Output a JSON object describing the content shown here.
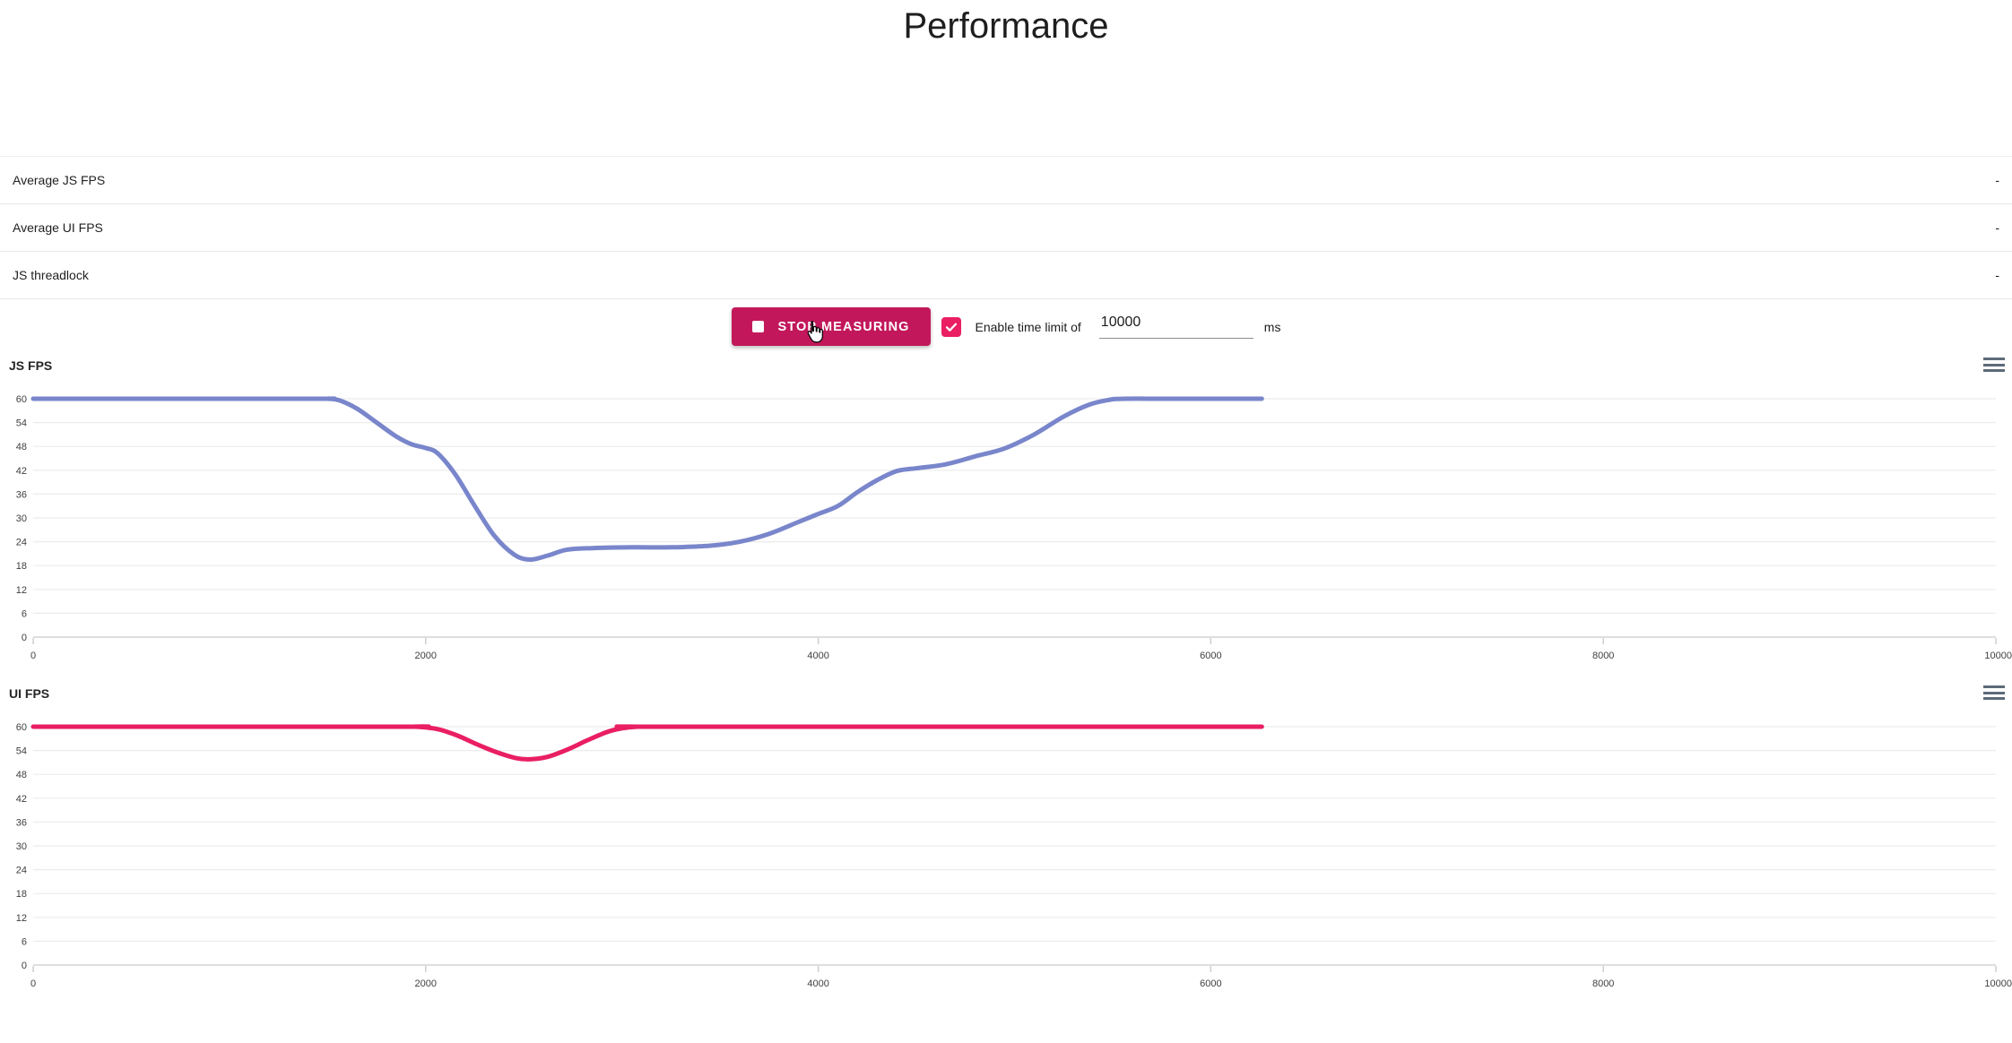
{
  "page": {
    "title": "Performance"
  },
  "stats": {
    "rows": [
      {
        "label": "Average JS FPS",
        "value": "-"
      },
      {
        "label": "Average UI FPS",
        "value": "-"
      },
      {
        "label": "JS threadlock",
        "value": "-"
      }
    ]
  },
  "controls": {
    "stop_button": {
      "label": "STOP MEASURING",
      "icon": "stop-square-icon"
    },
    "time_limit": {
      "checked": true,
      "checkbox_icon": "checkmark-icon",
      "label": "Enable time limit of",
      "value": "10000",
      "unit": "ms"
    }
  },
  "icons": {
    "chart_menu": "hamburger-menu-icon",
    "cursor": "hand-pointer-cursor"
  },
  "colors": {
    "button_pink": "#C2185B",
    "checkbox_pink": "#E91E63",
    "js_line": "#7986CB",
    "ui_line": "#E91E63",
    "grid": "#ececec",
    "axis": "#dedede",
    "tick_text": "#3f3f3f",
    "menu_icon": "#5d6a79"
  },
  "chart_data": [
    {
      "type": "line",
      "title": "JS FPS",
      "xlabel": "",
      "ylabel": "",
      "xlim": [
        0,
        10000
      ],
      "ylim": [
        0,
        60
      ],
      "xticks": [
        0,
        2000,
        4000,
        6000,
        8000,
        10000
      ],
      "yticks": [
        60,
        54,
        48,
        42,
        36,
        30,
        24,
        18,
        12,
        6,
        0
      ],
      "grid": true,
      "legend": "none",
      "series": [
        {
          "name": "JS FPS",
          "color": "#7986CB",
          "points": [
            [
              0,
              60
            ],
            [
              1400,
              60
            ],
            [
              1500,
              60
            ],
            [
              1560,
              59.6
            ],
            [
              1650,
              57.5
            ],
            [
              1750,
              54
            ],
            [
              1850,
              50.5
            ],
            [
              1930,
              48.5
            ],
            [
              2000,
              47.6
            ],
            [
              2060,
              46.3
            ],
            [
              2150,
              41
            ],
            [
              2250,
              33
            ],
            [
              2350,
              25.5
            ],
            [
              2450,
              20.8
            ],
            [
              2530,
              19.5
            ],
            [
              2620,
              20.5
            ],
            [
              2720,
              22
            ],
            [
              2850,
              22.4
            ],
            [
              3050,
              22.6
            ],
            [
              3250,
              22.6
            ],
            [
              3450,
              23
            ],
            [
              3600,
              24
            ],
            [
              3750,
              26
            ],
            [
              3900,
              29
            ],
            [
              4000,
              31
            ],
            [
              4100,
              33
            ],
            [
              4200,
              36.5
            ],
            [
              4300,
              39.5
            ],
            [
              4400,
              41.8
            ],
            [
              4500,
              42.5
            ],
            [
              4650,
              43.5
            ],
            [
              4800,
              45.5
            ],
            [
              4950,
              47.5
            ],
            [
              5100,
              51
            ],
            [
              5250,
              55.5
            ],
            [
              5380,
              58.5
            ],
            [
              5480,
              59.7
            ],
            [
              5560,
              60
            ],
            [
              5800,
              60
            ],
            [
              6260,
              60
            ]
          ]
        }
      ]
    },
    {
      "type": "line",
      "title": "UI FPS",
      "xlabel": "",
      "ylabel": "",
      "xlim": [
        0,
        10000
      ],
      "ylim": [
        0,
        60
      ],
      "xticks": [
        0,
        2000,
        4000,
        6000,
        8000,
        10000
      ],
      "yticks": [
        60,
        54,
        48,
        42,
        36,
        30,
        24,
        18,
        12,
        6,
        0
      ],
      "grid": true,
      "legend": "none",
      "series": [
        {
          "name": "UI FPS",
          "color": "#E91E63",
          "points": [
            [
              0,
              60
            ],
            [
              1850,
              60
            ],
            [
              1950,
              60
            ],
            [
              2060,
              59.4
            ],
            [
              2160,
              57.8
            ],
            [
              2260,
              55.6
            ],
            [
              2360,
              53.6
            ],
            [
              2460,
              52.1
            ],
            [
              2530,
              51.8
            ],
            [
              2620,
              52.4
            ],
            [
              2720,
              54.2
            ],
            [
              2820,
              56.5
            ],
            [
              2920,
              58.6
            ],
            [
              3000,
              59.6
            ],
            [
              3080,
              60
            ],
            [
              3250,
              60
            ],
            [
              6260,
              60
            ]
          ]
        }
      ]
    }
  ]
}
